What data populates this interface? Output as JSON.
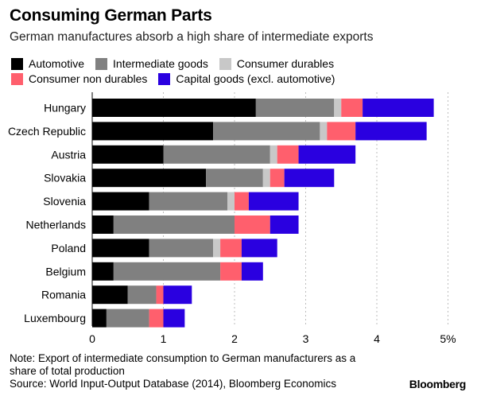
{
  "header": {
    "title": "Consuming German Parts",
    "subtitle": "German manufactures absorb a high share of intermediate exports"
  },
  "chart_data": {
    "type": "bar",
    "orientation": "horizontal",
    "stacked": true,
    "categories": [
      "Hungary",
      "Czech Republic",
      "Austria",
      "Slovakia",
      "Slovenia",
      "Netherlands",
      "Poland",
      "Belgium",
      "Romania",
      "Luxembourg"
    ],
    "series": [
      {
        "name": "Automotive",
        "color": "#000000",
        "values": [
          2.3,
          1.7,
          1.0,
          1.6,
          0.8,
          0.3,
          0.8,
          0.3,
          0.5,
          0.2
        ]
      },
      {
        "name": "Intermediate goods",
        "color": "#808080",
        "values": [
          1.1,
          1.5,
          1.5,
          0.8,
          1.1,
          1.7,
          0.9,
          1.5,
          0.4,
          0.6
        ]
      },
      {
        "name": "Consumer durables",
        "color": "#c8c8c8",
        "values": [
          0.1,
          0.1,
          0.1,
          0.1,
          0.1,
          0.0,
          0.1,
          0.0,
          0.0,
          0.0
        ]
      },
      {
        "name": "Consumer non durables",
        "color": "#ff5f6d",
        "values": [
          0.3,
          0.4,
          0.3,
          0.2,
          0.2,
          0.5,
          0.3,
          0.3,
          0.1,
          0.2
        ]
      },
      {
        "name": "Capital goods (excl. automotive)",
        "color": "#2a00e0",
        "values": [
          1.0,
          1.0,
          0.8,
          0.7,
          0.7,
          0.4,
          0.5,
          0.3,
          0.4,
          0.3
        ]
      }
    ],
    "xlim": [
      0,
      5
    ],
    "xticks": [
      0,
      1,
      2,
      3,
      4,
      5
    ],
    "xtick_labels": [
      "0",
      "1",
      "2",
      "3",
      "4",
      "5%"
    ],
    "xlabel": "",
    "ylabel": "",
    "grid": "vertical dashed",
    "legend_position": "top"
  },
  "footer": {
    "note": "Note: Export of intermediate consumption to German manufacturers as a share of total production",
    "source": "Source: World Input-Output Database (2014), Bloomberg Economics",
    "brand": "Bloomberg"
  }
}
